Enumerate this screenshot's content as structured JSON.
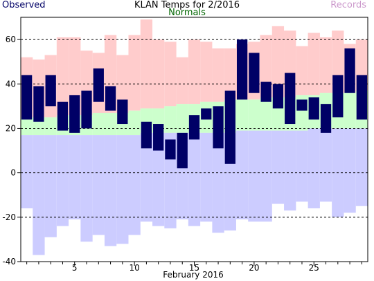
{
  "chart_data": {
    "type": "bar",
    "title": "KLAN Temps for 2/2016",
    "xlabel": "February 2016",
    "ylabel": "",
    "legend": [
      {
        "label": "Observed",
        "color": "#000066"
      },
      {
        "label": "Normals",
        "color": "#006600"
      },
      {
        "label": "Records",
        "color": "#cc99cc"
      }
    ],
    "ylim": [
      -40,
      70
    ],
    "yticks": [
      -40,
      -20,
      0,
      20,
      40,
      60
    ],
    "xlim": [
      0.5,
      29.5
    ],
    "xticks": [
      5,
      10,
      15,
      20,
      25
    ],
    "grid": true,
    "days": [
      1,
      2,
      3,
      4,
      5,
      6,
      7,
      8,
      9,
      10,
      11,
      12,
      13,
      14,
      15,
      16,
      17,
      18,
      19,
      20,
      21,
      22,
      23,
      24,
      25,
      26,
      27,
      28,
      29
    ],
    "record_high": [
      52,
      51,
      53,
      61,
      61,
      55,
      54,
      62,
      53,
      62,
      69,
      60,
      59,
      52,
      60,
      59,
      56,
      56,
      58,
      59,
      62,
      66,
      64,
      57,
      63,
      61,
      64,
      58,
      60
    ],
    "normal_high": [
      25,
      25,
      25,
      26,
      26,
      26,
      27,
      27,
      27,
      28,
      29,
      29,
      30,
      31,
      31,
      32,
      32,
      33,
      33,
      33,
      34,
      34,
      34,
      35,
      35,
      36,
      36,
      36,
      37
    ],
    "normal_low": [
      17,
      17,
      17,
      17,
      17,
      17,
      17,
      17,
      17,
      17,
      18,
      18,
      18,
      18,
      18,
      18,
      18,
      18,
      19,
      19,
      19,
      19,
      19,
      19,
      20,
      20,
      20,
      20,
      20
    ],
    "record_low": [
      -16,
      -37,
      -29,
      -24,
      -21,
      -31,
      -28,
      -33,
      -32,
      -28,
      -22,
      -24,
      -25,
      -21,
      -24,
      -22,
      -27,
      -26,
      -21,
      -22,
      -22,
      -14,
      -17,
      -13,
      -16,
      -13,
      -20,
      -18,
      -15
    ],
    "observed_high": [
      44,
      39,
      44,
      32,
      35,
      37,
      47,
      39,
      33,
      null,
      23,
      22,
      15,
      18,
      26,
      29,
      30,
      37,
      60,
      54,
      41,
      40,
      45,
      33,
      34,
      31,
      44,
      56,
      44
    ],
    "observed_low": [
      24,
      23,
      30,
      19,
      18,
      20,
      32,
      28,
      22,
      null,
      11,
      10,
      6,
      2,
      15,
      24,
      11,
      4,
      33,
      36,
      32,
      29,
      22,
      28,
      24,
      18,
      25,
      36,
      24
    ],
    "colors": {
      "record_band": "#ffcccc",
      "normal_band": "#ccffcc",
      "low_band": "#ccccff",
      "observed_bar": "#000066"
    }
  }
}
